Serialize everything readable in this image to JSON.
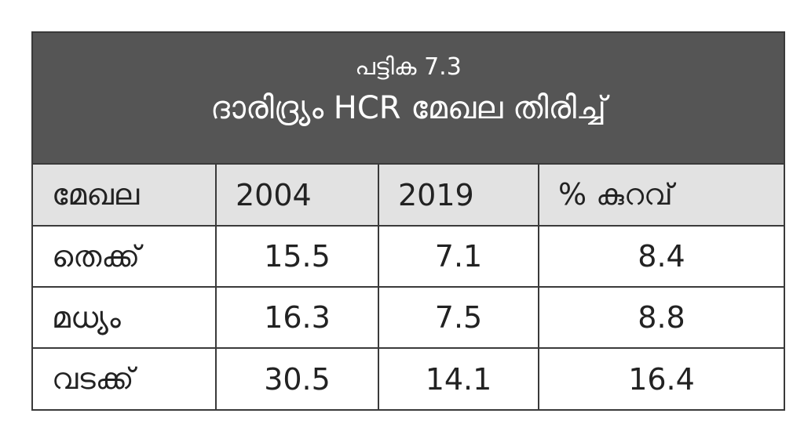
{
  "caption": {
    "number": "പട്ടിക 7.3",
    "title": "ദാരിദ്ര്യം HCR മേഖല തിരിച്ച്"
  },
  "table": {
    "headers": [
      "മേഖല",
      "2004",
      "2019",
      "% കുറവ്"
    ],
    "rows": [
      [
        "തെക്ക്",
        "15.5",
        "7.1",
        "8.4"
      ],
      [
        "മധ്യം",
        "16.3",
        "7.5",
        "8.8"
      ],
      [
        "വടക്ക്",
        "30.5",
        "14.1",
        "16.4"
      ]
    ]
  },
  "colors": {
    "caption_bg": "#555555",
    "header_bg": "#e2e2e2",
    "border": "#3a3a3a"
  }
}
